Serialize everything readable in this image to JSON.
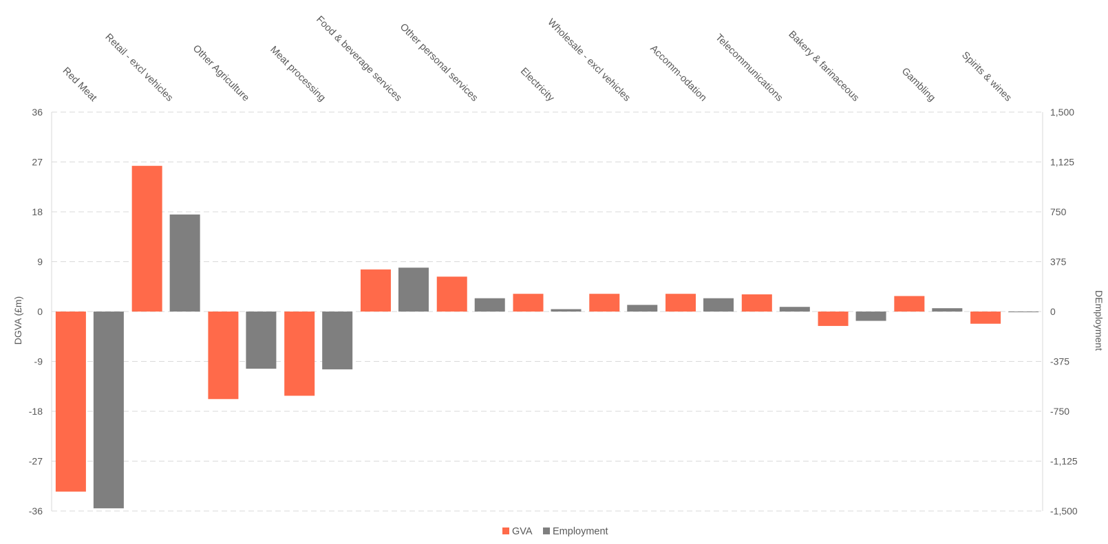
{
  "chart_data": {
    "type": "bar",
    "categories": [
      "Red Meat",
      "Retail - excl vehicles",
      "Other Agriculture",
      "Meat processing",
      "Food & beverage services",
      "Other personal services",
      "Electricity",
      "Wholesale - excl vehicles",
      "Accomm-odation",
      "Telecommunications",
      "Bakery & farinaceous",
      "Gambling",
      "Spirits & wines"
    ],
    "series": [
      {
        "name": "GVA",
        "axis": "left",
        "color": "#ff6a4a",
        "values": [
          -32.5,
          26.3,
          -15.8,
          -15.2,
          7.6,
          6.3,
          3.2,
          3.2,
          3.2,
          3.1,
          -2.6,
          2.8,
          -2.2
        ]
      },
      {
        "name": "Employment",
        "axis": "right",
        "color": "#7f7f7f",
        "values": [
          -1480,
          730,
          -430,
          -435,
          330,
          100,
          18,
          50,
          100,
          35,
          -70,
          25,
          -5
        ]
      }
    ],
    "ylabel": "DGVA (£m)",
    "y2label": "DEmployment",
    "ylim": [
      -36,
      36
    ],
    "y2lim": [
      -1500,
      1500
    ],
    "yticks": [
      "36",
      "27",
      "18",
      "9",
      "0",
      "-9",
      "-18",
      "-27",
      "-36"
    ],
    "y2ticks": [
      "1,500",
      "1,125",
      "750",
      "375",
      "0",
      "-375",
      "-750",
      "-1,125",
      "-1,500"
    ],
    "grid": true,
    "legend_position": "bottom"
  }
}
